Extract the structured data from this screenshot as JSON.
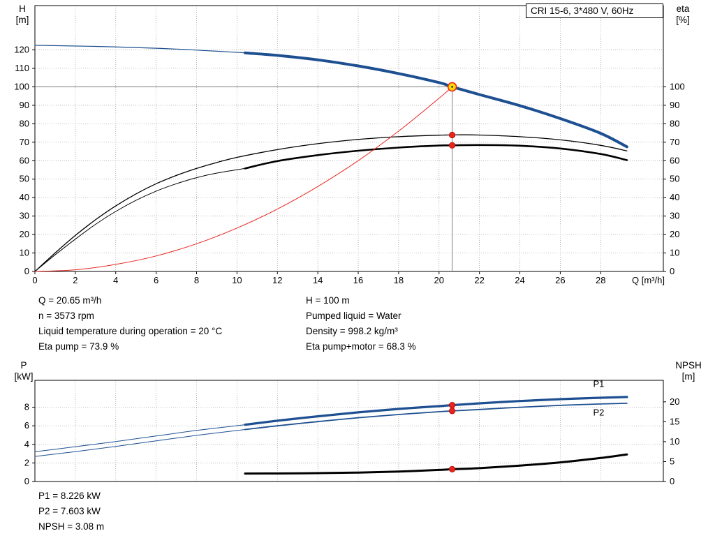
{
  "header": {
    "title_box": "CRI 15-6, 3*480 V, 60Hz"
  },
  "axis_labels": {
    "top_left": {
      "l1": "H",
      "l2": "[m]"
    },
    "top_right": {
      "l1": "eta",
      "l2": "[%]"
    },
    "bottom_left": {
      "l1": "P",
      "l2": "[kW]"
    },
    "bottom_right": {
      "l1": "NPSH",
      "l2": "[m]"
    }
  },
  "annotations": {
    "top_left": [
      "Q = 20.65 m³/h",
      "n = 3573 rpm",
      "Liquid temperature during operation = 20 °C",
      "Eta pump = 73.9 %"
    ],
    "top_right": [
      "H = 100 m",
      "Pumped liquid = Water",
      "Density = 998.2 kg/m³",
      "Eta pump+motor = 68.3 %"
    ],
    "bottom": [
      "P1 = 8.226 kW",
      "P2 = 7.603 kW",
      "NPSH = 3.08 m"
    ]
  },
  "colors": {
    "blue": "#1d4f91",
    "black": "#000000",
    "red": "#e8251d",
    "yellow": "#ffd900",
    "grid": "#9a9a9a",
    "crosshair": "#7d7d7d"
  },
  "chart_data": [
    {
      "type": "line",
      "name": "qh-eta-chart",
      "title": "CRI 15-6, 3*480 V, 60Hz",
      "xlabel": "Q [m³/h]",
      "ylabel_left": "H [m]",
      "ylabel_right": "eta [%]",
      "xlim": [
        0,
        31.1
      ],
      "ylim_left": [
        0,
        144
      ],
      "ylim_right": [
        0,
        144
      ],
      "x_ticks": [
        0,
        2,
        4,
        6,
        8,
        10,
        12,
        14,
        16,
        18,
        20,
        22,
        24,
        26,
        28
      ],
      "y_ticks_left": [
        0,
        10,
        20,
        30,
        40,
        50,
        60,
        70,
        80,
        90,
        100,
        110,
        120
      ],
      "y_ticks_right": [
        0,
        10,
        20,
        30,
        40,
        50,
        60,
        70,
        80,
        90,
        100
      ],
      "show_x_labels": true,
      "duty_point": {
        "x": 20.65,
        "y": 100
      },
      "crosshair": {
        "x": 20.65,
        "y": 100
      },
      "markers": [
        {
          "x": 20.65,
          "y": 73.9
        },
        {
          "x": 20.65,
          "y": 68.3
        }
      ],
      "series": [
        {
          "name": "pump-curve-thin",
          "color": "blue",
          "width": 1.2,
          "points": [
            [
              0,
              122.5
            ],
            [
              3,
              121.9
            ],
            [
              6,
              120.9
            ],
            [
              8,
              119.9
            ],
            [
              10.4,
              118.4
            ]
          ]
        },
        {
          "name": "pump-curve",
          "color": "blue",
          "width": 4,
          "points": [
            [
              10.4,
              118.4
            ],
            [
              12,
              117
            ],
            [
              14,
              114.6
            ],
            [
              16,
              111.3
            ],
            [
              18,
              107.2
            ],
            [
              20,
              102.3
            ],
            [
              20.65,
              100
            ],
            [
              22,
              95.8
            ],
            [
              24,
              89.8
            ],
            [
              26,
              82.8
            ],
            [
              28,
              74.8
            ],
            [
              29.3,
              67.5
            ]
          ]
        },
        {
          "name": "eta-pump-curve",
          "color": "black",
          "width": 1.3,
          "points": [
            [
              0,
              0
            ],
            [
              1,
              10
            ],
            [
              2,
              19.5
            ],
            [
              3,
              28
            ],
            [
              4,
              35.5
            ],
            [
              5,
              42
            ],
            [
              6,
              47.5
            ],
            [
              7,
              52
            ],
            [
              8,
              55.8
            ],
            [
              9,
              59
            ],
            [
              10,
              61.8
            ],
            [
              12,
              66
            ],
            [
              14,
              69.2
            ],
            [
              16,
              71.5
            ],
            [
              18,
              73
            ],
            [
              20,
              73.8
            ],
            [
              21,
              74
            ],
            [
              22,
              73.9
            ],
            [
              24,
              73
            ],
            [
              26,
              71.3
            ],
            [
              28,
              68.3
            ],
            [
              29.3,
              65.3
            ]
          ]
        },
        {
          "name": "eta-pump-motor-thin",
          "color": "black",
          "width": 1,
          "points": [
            [
              0,
              0
            ],
            [
              1,
              9
            ],
            [
              2,
              17.5
            ],
            [
              3,
              25.5
            ],
            [
              4,
              32.5
            ],
            [
              5,
              38.5
            ],
            [
              6,
              43.5
            ],
            [
              7,
              47.5
            ],
            [
              8,
              50.8
            ],
            [
              9,
              53.3
            ],
            [
              10.4,
              55.8
            ]
          ]
        },
        {
          "name": "eta-pump-motor-curve",
          "color": "black",
          "width": 2.6,
          "points": [
            [
              10.4,
              55.8
            ],
            [
              12,
              59.8
            ],
            [
              14,
              63
            ],
            [
              16,
              65.4
            ],
            [
              18,
              67.1
            ],
            [
              20,
              68.2
            ],
            [
              20.65,
              68.3
            ],
            [
              22,
              68.5
            ],
            [
              24,
              68.1
            ],
            [
              26,
              66.6
            ],
            [
              28,
              63.6
            ],
            [
              29.3,
              60.3
            ]
          ]
        },
        {
          "name": "system-curve",
          "color": "red",
          "width": 1,
          "points": [
            [
              0,
              0
            ],
            [
              2,
              0.9
            ],
            [
              4,
              3.8
            ],
            [
              6,
              8.4
            ],
            [
              8,
              15
            ],
            [
              10,
              23.5
            ],
            [
              12,
              33.8
            ],
            [
              14,
              46
            ],
            [
              16,
              60
            ],
            [
              18,
              76
            ],
            [
              20,
              93.8
            ],
            [
              20.65,
              100
            ]
          ]
        }
      ]
    },
    {
      "type": "line",
      "name": "power-npsh-chart",
      "xlabel": "",
      "ylabel_left": "P [kW]",
      "ylabel_right": "NPSH [m]",
      "xlim": [
        0,
        31.1
      ],
      "ylim_left": [
        0,
        10.9
      ],
      "ylim_right": [
        0,
        25.4
      ],
      "x_ticks": [
        0,
        2,
        4,
        6,
        8,
        10,
        12,
        14,
        16,
        18,
        20,
        22,
        24,
        26,
        28
      ],
      "y_ticks_left": [
        0,
        2,
        4,
        6,
        8
      ],
      "y_ticks_right": [
        0,
        5,
        10,
        15,
        20
      ],
      "show_x_labels": false,
      "markers": [
        {
          "x": 20.65,
          "y": 8.226
        },
        {
          "x": 20.65,
          "y": 7.603
        },
        {
          "x": 20.65,
          "y": 3.08,
          "axis": "right"
        }
      ],
      "labels": [
        {
          "x": 27.9,
          "y": 10.2,
          "text": "P1",
          "color": "blue"
        },
        {
          "x": 27.9,
          "y": 7.1,
          "text": "P2",
          "color": "blue"
        }
      ],
      "series": [
        {
          "name": "p1-curve-thin",
          "color": "blue",
          "width": 1,
          "points": [
            [
              0,
              3.2
            ],
            [
              2,
              3.75
            ],
            [
              4,
              4.3
            ],
            [
              6,
              4.9
            ],
            [
              8,
              5.5
            ],
            [
              10.4,
              6.12
            ]
          ]
        },
        {
          "name": "p1-curve",
          "color": "blue",
          "width": 3.2,
          "points": [
            [
              10.4,
              6.12
            ],
            [
              12,
              6.55
            ],
            [
              14,
              7.02
            ],
            [
              16,
              7.45
            ],
            [
              18,
              7.82
            ],
            [
              20,
              8.12
            ],
            [
              20.65,
              8.226
            ],
            [
              22,
              8.42
            ],
            [
              24,
              8.67
            ],
            [
              26,
              8.87
            ],
            [
              28,
              9.02
            ],
            [
              29.3,
              9.1
            ]
          ]
        },
        {
          "name": "p2-curve-thin",
          "color": "blue",
          "width": 1,
          "points": [
            [
              0,
              2.7
            ],
            [
              2,
              3.22
            ],
            [
              4,
              3.78
            ],
            [
              6,
              4.38
            ],
            [
              8,
              4.97
            ],
            [
              10.4,
              5.6
            ]
          ]
        },
        {
          "name": "p2-curve",
          "color": "blue",
          "width": 1.8,
          "points": [
            [
              10.4,
              5.6
            ],
            [
              12,
              6.0
            ],
            [
              14,
              6.45
            ],
            [
              16,
              6.87
            ],
            [
              18,
              7.22
            ],
            [
              20,
              7.52
            ],
            [
              20.65,
              7.603
            ],
            [
              22,
              7.76
            ],
            [
              24,
              8.0
            ],
            [
              26,
              8.2
            ],
            [
              28,
              8.35
            ],
            [
              29.3,
              8.43
            ]
          ]
        },
        {
          "name": "npsh-curve",
          "color": "black",
          "width": 3,
          "axis": "right",
          "points": [
            [
              10.4,
              2.0
            ],
            [
              12,
              2.02
            ],
            [
              14,
              2.1
            ],
            [
              16,
              2.25
            ],
            [
              18,
              2.5
            ],
            [
              20,
              2.9
            ],
            [
              20.65,
              3.08
            ],
            [
              22,
              3.35
            ],
            [
              24,
              4.0
            ],
            [
              26,
              4.8
            ],
            [
              28,
              5.9
            ],
            [
              29.3,
              6.8
            ]
          ]
        }
      ]
    }
  ]
}
